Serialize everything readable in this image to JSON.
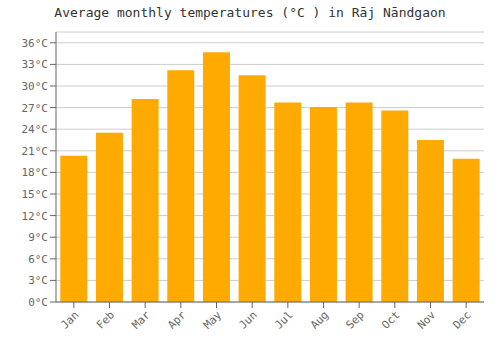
{
  "chart_data": {
    "type": "bar",
    "title": "Average monthly temperatures (°C ) in Rāj Nāndgaon",
    "categories": [
      "Jan",
      "Feb",
      "Mar",
      "Apr",
      "May",
      "Jun",
      "Jul",
      "Aug",
      "Sep",
      "Oct",
      "Nov",
      "Dec"
    ],
    "values": [
      20.3,
      23.5,
      28.2,
      32.2,
      34.7,
      31.5,
      27.7,
      27.1,
      27.7,
      26.6,
      22.5,
      19.9
    ],
    "color": "#FFAA00",
    "ylim": [
      0,
      37.5
    ],
    "yticks": [
      {
        "value": 0,
        "label": "0°C"
      },
      {
        "value": 3,
        "label": "3°C"
      },
      {
        "value": 6,
        "label": "6°C"
      },
      {
        "value": 9,
        "label": "9°C"
      },
      {
        "value": 12,
        "label": "12°C"
      },
      {
        "value": 15,
        "label": "15°C"
      },
      {
        "value": 18,
        "label": "18°C"
      },
      {
        "value": 21,
        "label": "21°C"
      },
      {
        "value": 24,
        "label": "24°C"
      },
      {
        "value": 27,
        "label": "27°C"
      },
      {
        "value": 30,
        "label": "30°C"
      },
      {
        "value": 33,
        "label": "33°C"
      },
      {
        "value": 36,
        "label": "36°C"
      }
    ],
    "grid": true
  }
}
